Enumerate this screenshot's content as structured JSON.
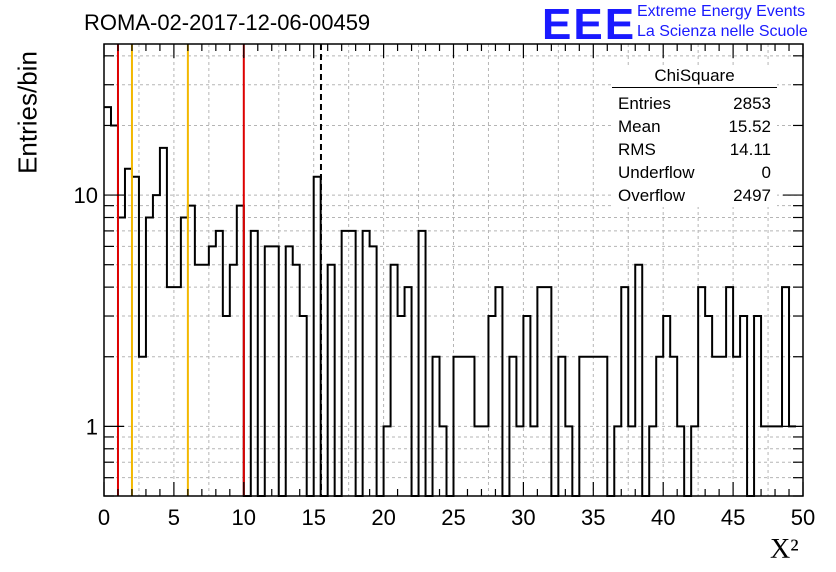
{
  "title": "ROMA-02-2017-12-06-00459",
  "logo": {
    "mark": "EEE",
    "line1": "Extreme Energy Events",
    "line2": "La Scienza nelle Scuole",
    "color": "#1a1aff"
  },
  "stats": {
    "name": "ChiSquare",
    "rows": [
      {
        "label": "Entries",
        "value": "2853"
      },
      {
        "label": "Mean",
        "value": "15.52"
      },
      {
        "label": "RMS",
        "value": "14.11"
      },
      {
        "label": "Underflow",
        "value": "0"
      },
      {
        "label": "Overflow",
        "value": "2497"
      }
    ]
  },
  "chart_data": {
    "type": "histogram-step",
    "title": "ROMA-02-2017-12-06-00459",
    "xlabel": "Χ²",
    "ylabel": "Entries/bin",
    "xlim": [
      0,
      50
    ],
    "ylim": [
      0.5,
      45
    ],
    "ylog": true,
    "bin_width": 0.5,
    "grid": true,
    "x_ticks": [
      "0",
      "5",
      "10",
      "15",
      "20",
      "25",
      "30",
      "35",
      "40",
      "45",
      "50"
    ],
    "y_ticks": [
      "1",
      "10"
    ],
    "values": [
      24,
      20,
      8,
      13,
      12,
      2,
      8,
      10,
      16,
      4,
      4,
      8,
      9,
      5,
      5,
      6,
      7,
      3,
      5,
      9,
      0,
      7,
      0,
      6,
      6,
      0,
      6,
      5,
      3,
      0.5,
      12,
      0.5,
      5,
      0.5,
      7,
      7,
      0.5,
      7,
      6,
      0.5,
      1,
      5,
      3,
      4,
      0.5,
      7,
      0.5,
      2,
      1,
      0.5,
      2,
      2,
      2,
      1,
      1,
      3,
      4,
      0.5,
      2,
      1,
      3,
      1,
      4,
      4,
      0.5,
      2,
      1,
      0.5,
      2,
      2,
      2,
      2,
      0.5,
      1,
      4,
      1,
      5,
      0.5,
      1,
      2,
      3,
      2,
      1,
      0,
      1,
      4,
      3,
      2,
      2,
      4,
      2,
      3,
      0.5,
      3,
      1,
      1,
      1,
      4,
      1
    ],
    "lines": [
      {
        "x": 1,
        "color": "#dd0000",
        "style": "solid"
      },
      {
        "x": 2,
        "color": "#f2b800",
        "style": "solid"
      },
      {
        "x": 6,
        "color": "#f2b800",
        "style": "solid"
      },
      {
        "x": 10,
        "color": "#dd0000",
        "style": "solid"
      },
      {
        "x": 15.52,
        "color": "#000000",
        "style": "dashed"
      }
    ]
  }
}
